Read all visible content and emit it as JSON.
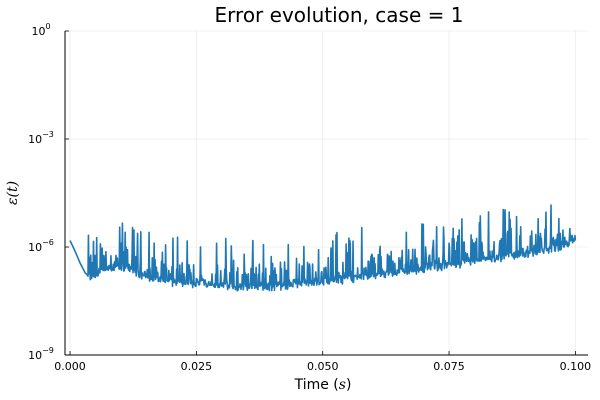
{
  "chart_data": {
    "type": "line",
    "title": "Error evolution, case = 1",
    "xlabel": {
      "text": "Time (",
      "math": "s",
      "suffix": ")"
    },
    "ylabel": {
      "math": "ε(t)"
    },
    "xlim": [
      -0.001,
      0.1025
    ],
    "ylim_log10": [
      -9,
      0
    ],
    "y_scale": "log",
    "grid": true,
    "legend": "none",
    "x_ticks": [
      {
        "value": 0.0,
        "label": "0.000"
      },
      {
        "value": 0.025,
        "label": "0.025"
      },
      {
        "value": 0.05,
        "label": "0.050"
      },
      {
        "value": 0.075,
        "label": "0.075"
      },
      {
        "value": 0.1,
        "label": "0.100"
      }
    ],
    "y_ticks": [
      {
        "value_log10": 0,
        "base": "10",
        "exp": "0"
      },
      {
        "value_log10": -3,
        "base": "10",
        "exp": "−3"
      },
      {
        "value_log10": -6,
        "base": "10",
        "exp": "−6"
      },
      {
        "value_log10": -9,
        "base": "10",
        "exp": "−9"
      }
    ],
    "series_color": "#1f77b4",
    "series": [
      {
        "x": [
          0.0,
          0.001,
          0.002,
          0.003,
          0.004,
          0.005,
          0.007,
          0.009,
          0.011,
          0.013,
          0.015,
          0.018,
          0.021,
          0.025,
          0.029,
          0.033,
          0.037,
          0.041,
          0.045,
          0.05,
          0.055,
          0.06,
          0.065,
          0.07,
          0.075,
          0.08,
          0.085,
          0.09,
          0.095,
          0.098,
          0.1
        ],
        "y_log10": [
          -5.82,
          -6.12,
          -6.45,
          -6.72,
          -6.85,
          -6.78,
          -6.62,
          -6.55,
          -6.58,
          -6.7,
          -6.85,
          -6.96,
          -7.0,
          -7.02,
          -7.08,
          -7.15,
          -7.14,
          -7.1,
          -7.04,
          -6.98,
          -6.9,
          -6.8,
          -6.72,
          -6.62,
          -6.52,
          -6.42,
          -6.32,
          -6.2,
          -6.1,
          -5.98,
          -5.72
        ]
      }
    ]
  }
}
